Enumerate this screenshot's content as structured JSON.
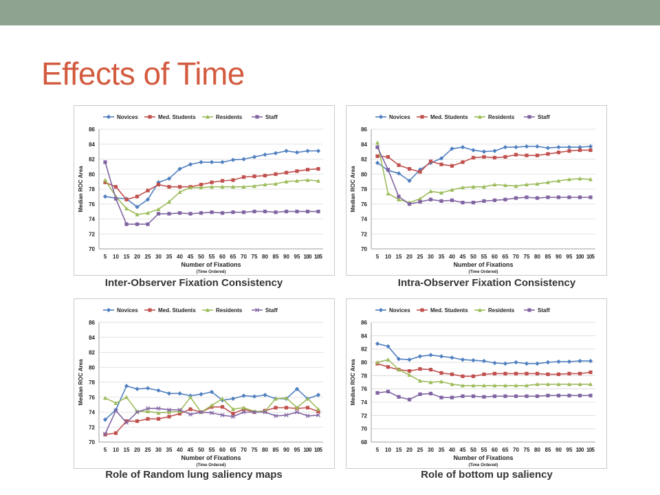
{
  "title": "Effects of Time",
  "colors": {
    "topbar": "#8fa391",
    "title": "#d35b3f",
    "novices": "#4f7fc0",
    "med_students": "#c0504d",
    "residents": "#9bbb59",
    "staff_square": "#8064a2"
  },
  "captions": [
    "Inter-Observer Fixation Consistency",
    "Intra-Observer Fixation Consistency",
    "Role of Random lung saliency maps",
    "Role of bottom up saliency"
  ],
  "chart_data": [
    {
      "type": "line",
      "ylabel": "Median ROC Area",
      "xlabel": "Number of Fixations",
      "xlabel_sub": "(Time Ordered)",
      "x": [
        5,
        10,
        15,
        20,
        25,
        30,
        35,
        40,
        45,
        50,
        55,
        60,
        65,
        70,
        75,
        80,
        85,
        90,
        95,
        100,
        105
      ],
      "x_tick_labels": [
        "5",
        "10",
        "15",
        "20",
        "25",
        "30",
        "35",
        "40",
        "45",
        "50",
        "55",
        "60",
        "65",
        "70",
        "75",
        "80",
        "85",
        "90",
        "95",
        "100",
        "105"
      ],
      "ylim": [
        70,
        86
      ],
      "yticks": [
        70,
        72,
        74,
        76,
        78,
        80,
        82,
        84,
        86
      ],
      "legend_position": "top",
      "series": [
        {
          "name": "Novices",
          "color": "#4f7fc0",
          "marker": "diamond",
          "values": [
            77.0,
            76.8,
            76.7,
            75.6,
            76.6,
            78.9,
            79.4,
            80.7,
            81.3,
            81.6,
            81.6,
            81.6,
            81.9,
            82.0,
            82.3,
            82.6,
            82.8,
            83.1,
            82.9,
            83.1,
            83.1
          ]
        },
        {
          "name": "Med. Students",
          "color": "#c0504d",
          "marker": "square",
          "values": [
            78.9,
            78.3,
            76.6,
            77.0,
            77.8,
            78.6,
            78.3,
            78.3,
            78.3,
            78.6,
            78.9,
            79.1,
            79.2,
            79.6,
            79.7,
            79.8,
            80.0,
            80.2,
            80.4,
            80.6,
            80.7
          ]
        },
        {
          "name": "Residents",
          "color": "#9bbb59",
          "marker": "triangle",
          "values": [
            79.2,
            77.0,
            75.4,
            74.6,
            74.8,
            75.3,
            76.3,
            77.6,
            78.2,
            78.2,
            78.3,
            78.3,
            78.3,
            78.3,
            78.4,
            78.6,
            78.7,
            79.0,
            79.1,
            79.2,
            79.1
          ]
        },
        {
          "name": "Staff",
          "color": "#8064a2",
          "marker": "square",
          "values": [
            81.6,
            76.7,
            73.3,
            73.3,
            73.3,
            74.7,
            74.7,
            74.8,
            74.7,
            74.8,
            74.9,
            74.8,
            74.9,
            74.9,
            75.0,
            75.0,
            74.9,
            75.0,
            75.0,
            75.0,
            75.0
          ]
        }
      ]
    },
    {
      "type": "line",
      "ylabel": "Median ROC Area",
      "xlabel": "Number of Fixations",
      "xlabel_sub": "(Time Ordered)",
      "x": [
        5,
        10,
        15,
        20,
        25,
        30,
        35,
        40,
        45,
        50,
        55,
        60,
        65,
        70,
        75,
        80,
        85,
        90,
        95,
        100,
        105
      ],
      "x_tick_labels": [
        "5",
        "10",
        "15",
        "20",
        "25",
        "30",
        "35",
        "40",
        "45",
        "50",
        "55",
        "60",
        "65",
        "70",
        "75",
        "80",
        "85",
        "90",
        "95",
        "100",
        "105"
      ],
      "ylim": [
        70,
        86
      ],
      "yticks": [
        70,
        72,
        74,
        76,
        78,
        80,
        82,
        84,
        86
      ],
      "legend_position": "top",
      "series": [
        {
          "name": "Novices",
          "color": "#4f7fc0",
          "marker": "diamond",
          "values": [
            81.5,
            80.5,
            80.1,
            79.1,
            80.6,
            81.5,
            82.1,
            83.4,
            83.6,
            83.2,
            83.0,
            83.1,
            83.6,
            83.6,
            83.7,
            83.7,
            83.5,
            83.6,
            83.6,
            83.6,
            83.7
          ]
        },
        {
          "name": "Med. Students",
          "color": "#c0504d",
          "marker": "square",
          "values": [
            82.4,
            82.3,
            81.2,
            80.7,
            80.3,
            81.7,
            81.3,
            81.1,
            81.6,
            82.2,
            82.3,
            82.2,
            82.3,
            82.6,
            82.5,
            82.5,
            82.7,
            82.9,
            83.1,
            83.2,
            83.2
          ]
        },
        {
          "name": "Residents",
          "color": "#9bbb59",
          "marker": "triangle",
          "values": [
            84.2,
            77.4,
            76.6,
            76.2,
            76.7,
            77.7,
            77.5,
            77.9,
            78.2,
            78.3,
            78.3,
            78.6,
            78.5,
            78.4,
            78.6,
            78.7,
            78.9,
            79.1,
            79.3,
            79.4,
            79.3
          ]
        },
        {
          "name": "Staff",
          "color": "#8064a2",
          "marker": "square",
          "values": [
            83.6,
            80.6,
            77.0,
            76.0,
            76.3,
            76.6,
            76.4,
            76.5,
            76.2,
            76.2,
            76.4,
            76.5,
            76.6,
            76.8,
            76.9,
            76.8,
            76.9,
            76.9,
            76.9,
            76.9,
            76.9
          ]
        }
      ]
    },
    {
      "type": "line",
      "ylabel": "Median ROC Area",
      "xlabel": "Number of Fixations",
      "xlabel_sub": "(Time Ordered)",
      "x": [
        5,
        10,
        15,
        20,
        25,
        30,
        35,
        40,
        45,
        50,
        55,
        60,
        65,
        70,
        75,
        80,
        85,
        90,
        95,
        100,
        105
      ],
      "x_tick_labels": [
        "5",
        "10",
        "15",
        "20",
        "25",
        "30",
        "35",
        "40",
        "45",
        "50",
        "55",
        "60",
        "65",
        "70",
        "75",
        "80",
        "85",
        "90",
        "95",
        "100",
        "105"
      ],
      "ylim": [
        70,
        86
      ],
      "yticks": [
        70,
        72,
        74,
        76,
        78,
        80,
        82,
        84,
        86
      ],
      "legend_position": "top",
      "series": [
        {
          "name": "Novices",
          "color": "#4f7fc0",
          "marker": "diamond",
          "values": [
            73.0,
            74.3,
            77.5,
            77.1,
            77.2,
            76.9,
            76.5,
            76.5,
            76.2,
            76.4,
            76.7,
            75.6,
            75.8,
            76.2,
            76.1,
            76.3,
            75.8,
            75.8,
            77.1,
            75.8,
            76.3
          ]
        },
        {
          "name": "Med. Students",
          "color": "#c0504d",
          "marker": "square",
          "values": [
            71.0,
            71.2,
            72.8,
            72.8,
            73.1,
            73.1,
            73.4,
            73.8,
            74.4,
            74.0,
            74.7,
            74.7,
            73.8,
            74.4,
            74.0,
            74.2,
            74.6,
            74.6,
            74.5,
            74.6,
            74.1
          ]
        },
        {
          "name": "Residents",
          "color": "#9bbb59",
          "marker": "triangle",
          "values": [
            75.9,
            75.2,
            76.0,
            74.1,
            74.1,
            73.9,
            74.0,
            74.1,
            76.0,
            74.0,
            74.9,
            75.8,
            74.4,
            74.6,
            74.1,
            74.1,
            75.8,
            75.9,
            74.6,
            75.8,
            74.4
          ]
        },
        {
          "name": "Staff",
          "color": "#8064a2",
          "marker": "x",
          "values": [
            71.1,
            74.2,
            72.6,
            74.0,
            74.5,
            74.5,
            74.3,
            74.3,
            73.7,
            74.0,
            73.9,
            73.6,
            73.4,
            74.0,
            74.0,
            74.0,
            73.5,
            73.6,
            74.0,
            73.5,
            73.6
          ]
        }
      ]
    },
    {
      "type": "line",
      "ylabel": "Median ROC Area",
      "xlabel": "Number of Fixations",
      "xlabel_sub": "(Time Ordered)",
      "x": [
        5,
        10,
        15,
        20,
        25,
        30,
        35,
        40,
        45,
        50,
        55,
        60,
        65,
        70,
        75,
        80,
        85,
        90,
        95,
        100,
        105
      ],
      "x_tick_labels": [
        "5",
        "10",
        "15",
        "20",
        "25",
        "30",
        "35",
        "40",
        "45",
        "50",
        "55",
        "60",
        "65",
        "70",
        "75",
        "80",
        "85",
        "90",
        "95",
        "100",
        "105"
      ],
      "ylim": [
        68,
        86
      ],
      "yticks": [
        68,
        70,
        72,
        74,
        76,
        78,
        80,
        82,
        84,
        86
      ],
      "legend_position": "top",
      "series": [
        {
          "name": "Novices",
          "color": "#4f7fc0",
          "marker": "diamond",
          "values": [
            82.8,
            82.4,
            80.5,
            80.4,
            80.9,
            81.1,
            80.9,
            80.7,
            80.4,
            80.3,
            80.2,
            79.9,
            79.8,
            80.0,
            79.8,
            79.8,
            80.0,
            80.1,
            80.1,
            80.2,
            80.2
          ]
        },
        {
          "name": "Med. Students",
          "color": "#c0504d",
          "marker": "square",
          "values": [
            79.8,
            79.3,
            78.9,
            78.7,
            79.0,
            78.9,
            78.4,
            78.2,
            77.9,
            77.9,
            78.2,
            78.3,
            78.3,
            78.3,
            78.3,
            78.3,
            78.2,
            78.2,
            78.3,
            78.3,
            78.5
          ]
        },
        {
          "name": "Residents",
          "color": "#9bbb59",
          "marker": "triangle",
          "values": [
            80.0,
            80.4,
            78.9,
            78.1,
            77.2,
            77.0,
            77.1,
            76.7,
            76.5,
            76.5,
            76.5,
            76.5,
            76.5,
            76.5,
            76.5,
            76.7,
            76.7,
            76.7,
            76.7,
            76.7,
            76.7
          ]
        },
        {
          "name": "Staff",
          "color": "#8064a2",
          "marker": "square",
          "values": [
            75.4,
            75.6,
            74.8,
            74.4,
            75.2,
            75.3,
            74.7,
            74.7,
            74.9,
            74.9,
            74.8,
            74.9,
            74.9,
            74.9,
            74.9,
            74.9,
            75.0,
            75.0,
            75.0,
            75.0,
            75.0
          ]
        }
      ]
    }
  ]
}
